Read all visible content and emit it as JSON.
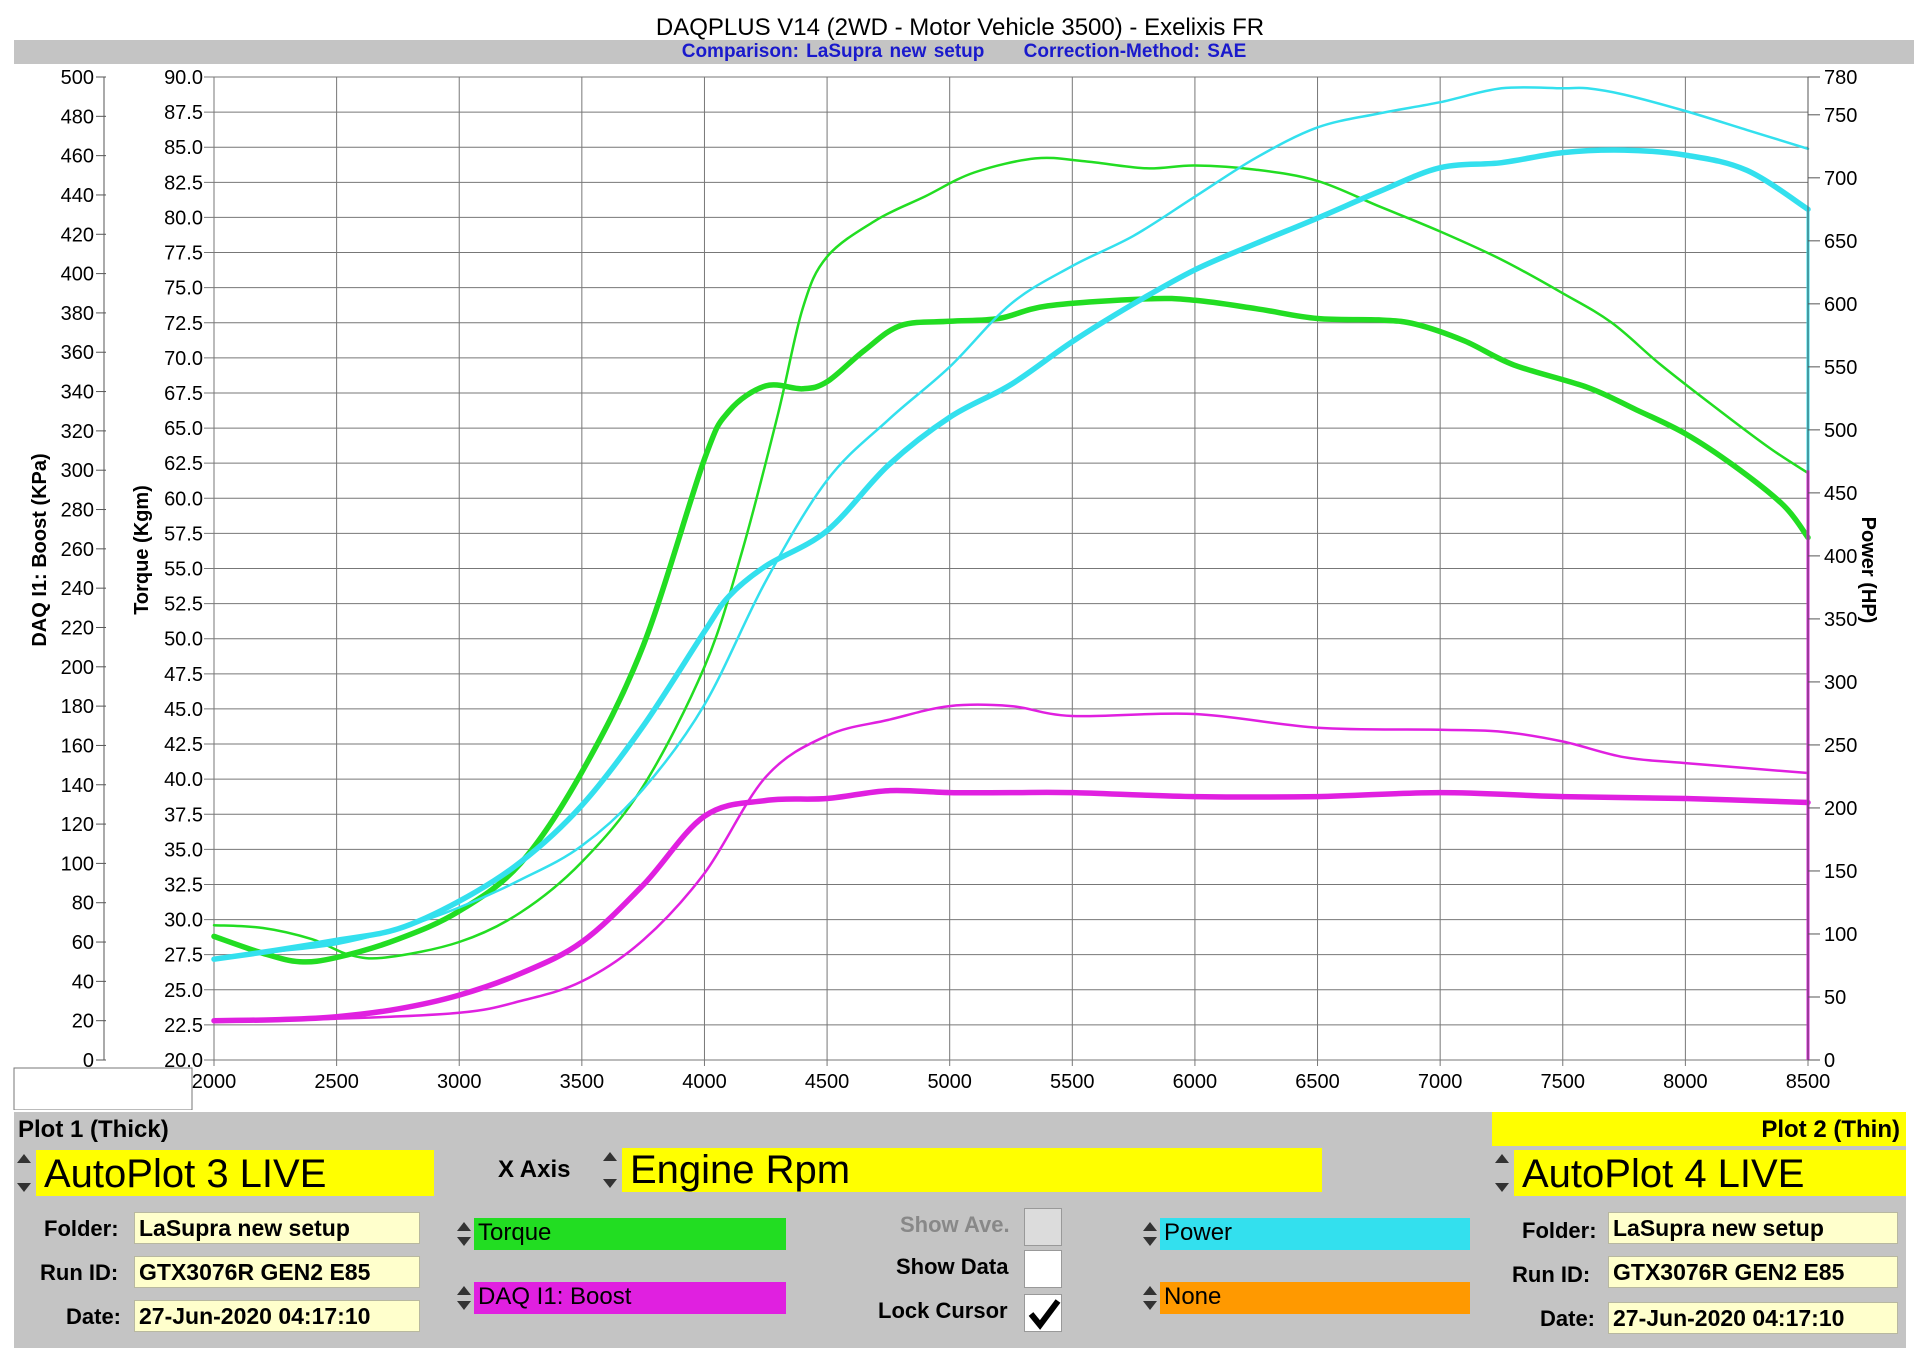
{
  "header": {
    "title": "DAQPLUS V14 (2WD - Motor Vehicle 3500) - Exelixis FR",
    "comparison": "Comparison: LaSupra new setup",
    "correction": "Correction-Method: SAE"
  },
  "chart_data": {
    "type": "line",
    "x_label": "",
    "x_range": [
      2000,
      8500
    ],
    "x_ticks": [
      2000,
      2500,
      3000,
      3500,
      4000,
      4500,
      5000,
      5500,
      6000,
      6500,
      7000,
      7500,
      8000,
      8500
    ],
    "grid": true,
    "axes": {
      "boost": {
        "label": "DAQ I1: Boost (KPa)",
        "range": [
          0,
          500
        ],
        "ticks": [
          0,
          20,
          40,
          60,
          80,
          100,
          120,
          140,
          160,
          180,
          200,
          220,
          240,
          260,
          280,
          300,
          320,
          340,
          360,
          380,
          400,
          420,
          440,
          460,
          480,
          500
        ]
      },
      "torque": {
        "label": "Torque (Kgm)",
        "range": [
          20,
          90
        ],
        "ticks": [
          "20.0",
          "22.5",
          "25.0",
          "27.5",
          "30.0",
          "32.5",
          "35.0",
          "37.5",
          "40.0",
          "42.5",
          "45.0",
          "47.5",
          "50.0",
          "52.5",
          "55.0",
          "57.5",
          "60.0",
          "62.5",
          "65.0",
          "67.5",
          "70.0",
          "72.5",
          "75.0",
          "77.5",
          "80.0",
          "82.5",
          "85.0",
          "87.5",
          "90.0"
        ]
      },
      "power": {
        "label": "Power (HP)",
        "range": [
          0,
          780
        ],
        "ticks": [
          0,
          50,
          100,
          150,
          200,
          250,
          300,
          350,
          400,
          450,
          500,
          550,
          600,
          650,
          700,
          750,
          780
        ]
      }
    },
    "series": [
      {
        "axis": "torque",
        "plot": "thick",
        "color": "#22dd22",
        "points": [
          [
            2000,
            28.8
          ],
          [
            2200,
            27.6
          ],
          [
            2350,
            27.0
          ],
          [
            2500,
            27.3
          ],
          [
            2750,
            28.6
          ],
          [
            3000,
            30.6
          ],
          [
            3250,
            34.0
          ],
          [
            3500,
            40.5
          ],
          [
            3750,
            49.5
          ],
          [
            4000,
            62.8
          ],
          [
            4100,
            66.2
          ],
          [
            4250,
            68.0
          ],
          [
            4400,
            67.8
          ],
          [
            4500,
            68.3
          ],
          [
            4650,
            70.5
          ],
          [
            4800,
            72.3
          ],
          [
            5000,
            72.6
          ],
          [
            5200,
            72.8
          ],
          [
            5400,
            73.7
          ],
          [
            5800,
            74.2
          ],
          [
            6000,
            74.1
          ],
          [
            6250,
            73.5
          ],
          [
            6500,
            72.8
          ],
          [
            6750,
            72.7
          ],
          [
            6900,
            72.4
          ],
          [
            7100,
            71.2
          ],
          [
            7300,
            69.5
          ],
          [
            7600,
            67.9
          ],
          [
            7800,
            66.3
          ],
          [
            8000,
            64.6
          ],
          [
            8200,
            62.3
          ],
          [
            8400,
            59.5
          ],
          [
            8500,
            57.2
          ]
        ]
      },
      {
        "axis": "torque",
        "plot": "thin",
        "color": "#22dd22",
        "points": [
          [
            2000,
            29.6
          ],
          [
            2200,
            29.4
          ],
          [
            2400,
            28.6
          ],
          [
            2550,
            27.5
          ],
          [
            2700,
            27.3
          ],
          [
            3000,
            28.4
          ],
          [
            3250,
            30.5
          ],
          [
            3500,
            34.1
          ],
          [
            3750,
            39.5
          ],
          [
            4000,
            48.0
          ],
          [
            4150,
            56.0
          ],
          [
            4300,
            66.0
          ],
          [
            4400,
            73.5
          ],
          [
            4500,
            77.2
          ],
          [
            4700,
            79.8
          ],
          [
            4900,
            81.5
          ],
          [
            5100,
            83.2
          ],
          [
            5350,
            84.2
          ],
          [
            5550,
            84.0
          ],
          [
            5800,
            83.5
          ],
          [
            6000,
            83.7
          ],
          [
            6250,
            83.4
          ],
          [
            6500,
            82.6
          ],
          [
            6750,
            80.8
          ],
          [
            7000,
            79.0
          ],
          [
            7250,
            77.0
          ],
          [
            7500,
            74.6
          ],
          [
            7700,
            72.5
          ],
          [
            7900,
            69.5
          ],
          [
            8150,
            66.1
          ],
          [
            8350,
            63.5
          ],
          [
            8500,
            61.8
          ]
        ]
      },
      {
        "axis": "power",
        "plot": "thick",
        "color": "#33e0ee",
        "points": [
          [
            2000,
            80
          ],
          [
            2250,
            87
          ],
          [
            2500,
            95
          ],
          [
            2750,
            104
          ],
          [
            3000,
            126
          ],
          [
            3250,
            157
          ],
          [
            3500,
            202
          ],
          [
            3750,
            265
          ],
          [
            4000,
            340
          ],
          [
            4100,
            368
          ],
          [
            4250,
            392
          ],
          [
            4500,
            420
          ],
          [
            4750,
            472
          ],
          [
            5000,
            510
          ],
          [
            5250,
            536
          ],
          [
            5500,
            570
          ],
          [
            5750,
            600
          ],
          [
            6000,
            627
          ],
          [
            6250,
            648
          ],
          [
            6500,
            668
          ],
          [
            6750,
            689
          ],
          [
            7000,
            708
          ],
          [
            7250,
            712
          ],
          [
            7500,
            720
          ],
          [
            7750,
            722
          ],
          [
            8000,
            718
          ],
          [
            8250,
            706
          ],
          [
            8500,
            675
          ]
        ]
      },
      {
        "axis": "power",
        "plot": "thin",
        "color": "#33e0ee",
        "points": [
          [
            2000,
            80
          ],
          [
            2250,
            86
          ],
          [
            2500,
            92
          ],
          [
            2750,
            104
          ],
          [
            3000,
            121
          ],
          [
            3250,
            143
          ],
          [
            3500,
            170
          ],
          [
            3750,
            215
          ],
          [
            4000,
            282
          ],
          [
            4250,
            380
          ],
          [
            4500,
            460
          ],
          [
            4750,
            508
          ],
          [
            5000,
            550
          ],
          [
            5250,
            600
          ],
          [
            5500,
            630
          ],
          [
            5750,
            654
          ],
          [
            6000,
            685
          ],
          [
            6250,
            716
          ],
          [
            6500,
            740
          ],
          [
            6750,
            751
          ],
          [
            7000,
            760
          ],
          [
            7250,
            771
          ],
          [
            7500,
            771
          ],
          [
            7600,
            771
          ],
          [
            7750,
            766
          ],
          [
            8000,
            753
          ],
          [
            8250,
            738
          ],
          [
            8500,
            723
          ]
        ]
      },
      {
        "axis": "boost",
        "plot": "thick",
        "color": "#e020e0",
        "points": [
          [
            2000,
            20
          ],
          [
            2250,
            20.5
          ],
          [
            2500,
            22
          ],
          [
            2750,
            26
          ],
          [
            3000,
            33
          ],
          [
            3250,
            44
          ],
          [
            3500,
            60
          ],
          [
            3750,
            89
          ],
          [
            4000,
            124
          ],
          [
            4250,
            132
          ],
          [
            4500,
            133
          ],
          [
            4750,
            137
          ],
          [
            5000,
            136
          ],
          [
            5250,
            136
          ],
          [
            5500,
            136
          ],
          [
            6000,
            134
          ],
          [
            6500,
            134
          ],
          [
            7000,
            136
          ],
          [
            7500,
            134
          ],
          [
            8000,
            133
          ],
          [
            8500,
            131
          ]
        ]
      },
      {
        "axis": "boost",
        "plot": "thin",
        "color": "#e020e0",
        "points": [
          [
            2000,
            20
          ],
          [
            2500,
            21
          ],
          [
            3000,
            24
          ],
          [
            3250,
            30
          ],
          [
            3500,
            40
          ],
          [
            3750,
            61
          ],
          [
            4000,
            95
          ],
          [
            4250,
            144
          ],
          [
            4500,
            165
          ],
          [
            4750,
            173
          ],
          [
            5000,
            180
          ],
          [
            5250,
            180
          ],
          [
            5500,
            175
          ],
          [
            6000,
            176
          ],
          [
            6500,
            169
          ],
          [
            7000,
            168
          ],
          [
            7250,
            167
          ],
          [
            7500,
            162
          ],
          [
            7750,
            154
          ],
          [
            8000,
            151
          ],
          [
            8500,
            146
          ]
        ]
      }
    ]
  },
  "panel": {
    "plot1": {
      "header": "Plot 1 (Thick)",
      "source": "AutoPlot 3 LIVE",
      "folder_label": "Folder:",
      "folder": "LaSupra new setup",
      "runid_label": "Run ID:",
      "runid": "GTX3076R GEN2 E85",
      "date_label": "Date:",
      "date": "27-Jun-2020 04:17:10"
    },
    "plot2": {
      "header": "Plot 2 (Thin)",
      "source": "AutoPlot 4 LIVE",
      "folder_label": "Folder:",
      "folder": "LaSupra new setup",
      "runid_label": "Run ID:",
      "runid": "GTX3076R GEN2 E85",
      "date_label": "Date:",
      "date": "27-Jun-2020 04:17:10"
    },
    "xaxis_label": "X Axis",
    "xaxis_value": "Engine Rpm",
    "channels": {
      "left1": {
        "label": "Torque",
        "color": "#22dd22"
      },
      "left2": {
        "label": "DAQ I1: Boost",
        "color": "#e020e0"
      },
      "right1": {
        "label": "Power",
        "color": "#33e0ee"
      },
      "right2": {
        "label": "None",
        "color": "#ff9900"
      }
    },
    "show_ave_label": "Show Ave.",
    "show_data_label": "Show Data",
    "lock_cursor_label": "Lock Cursor"
  }
}
